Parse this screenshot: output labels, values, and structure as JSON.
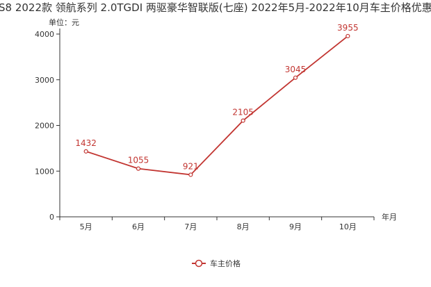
{
  "chart_data": {
    "type": "line",
    "title": "S8 2022款 领航系列 2.0TGDI 两驱豪华智联版(七座) 2022年5月-2022年10月车主价格优惠",
    "xlabel": "年月",
    "ylabel": "单位：元",
    "categories": [
      "5月",
      "6月",
      "7月",
      "8月",
      "9月",
      "10月"
    ],
    "ylim": [
      0,
      4000
    ],
    "yticks": [
      0,
      1000,
      2000,
      3000,
      4000
    ],
    "grid": false,
    "legend": "bottom-center",
    "series": [
      {
        "name": "车主价格",
        "color": "#c23531",
        "values": [
          1432,
          1055,
          921,
          2105,
          3045,
          3955
        ]
      }
    ]
  }
}
